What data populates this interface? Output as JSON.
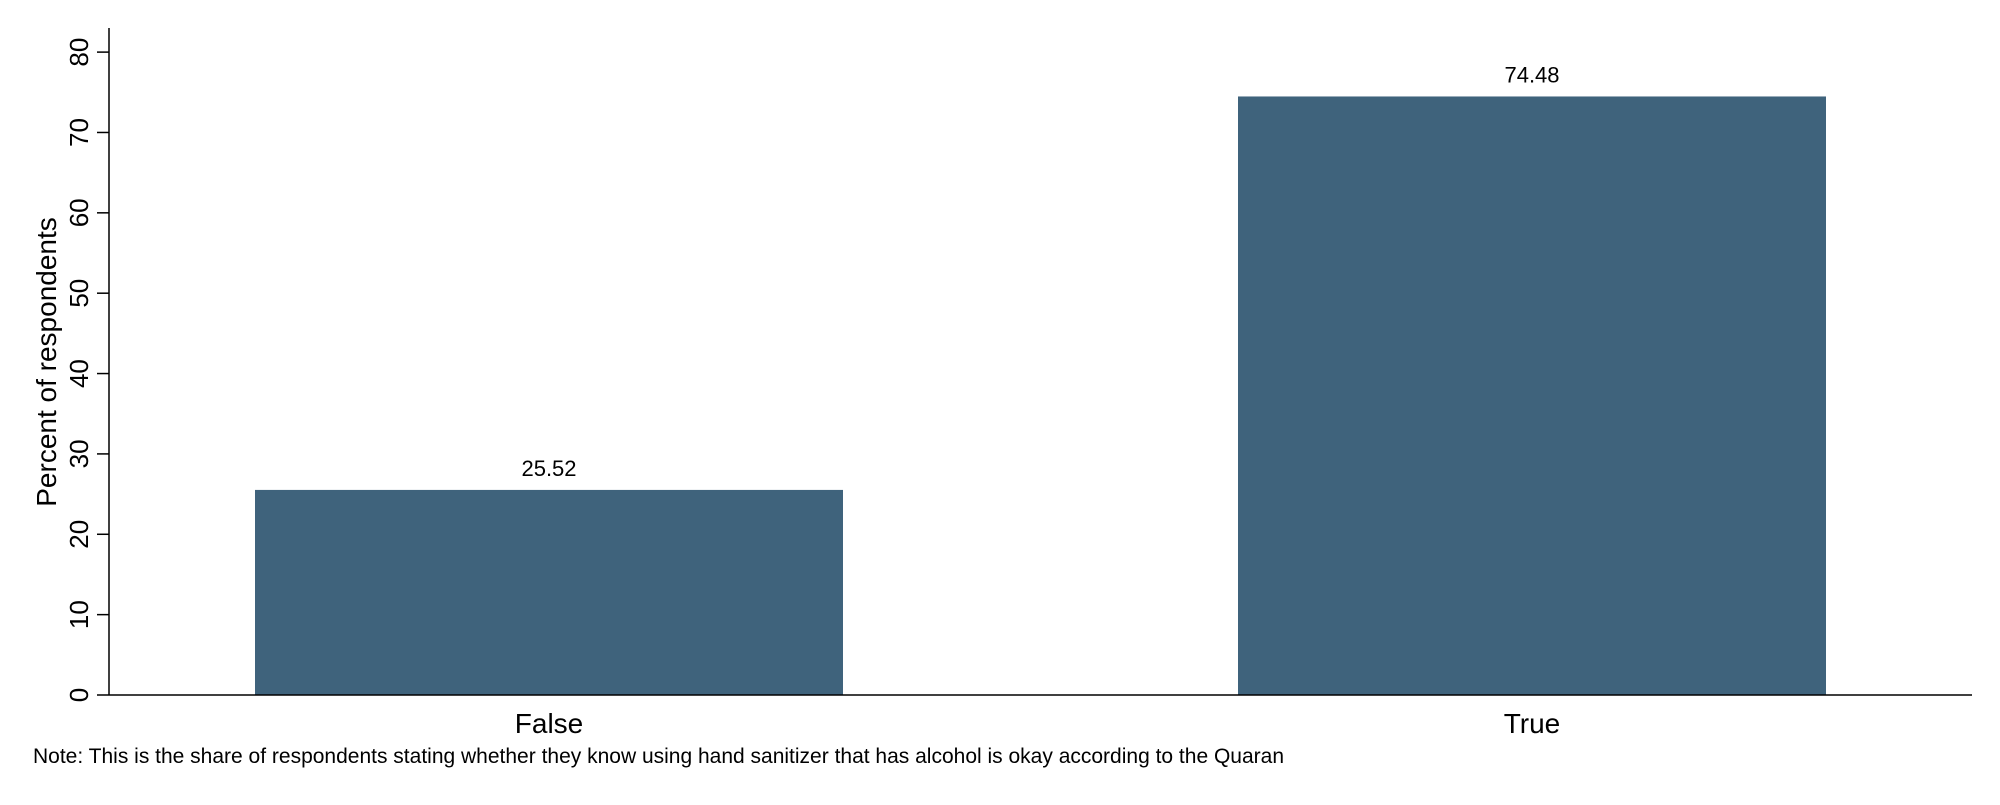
{
  "chart_data": {
    "type": "bar",
    "categories": [
      "False",
      "True"
    ],
    "values": [
      25.52,
      74.48
    ],
    "value_labels": [
      "25.52",
      "74.48"
    ],
    "ylabel": "Percent of respondents",
    "xlabel": "",
    "ylim": [
      0,
      83
    ],
    "yticks": [
      0,
      10,
      20,
      30,
      40,
      50,
      60,
      70,
      80
    ],
    "ytick_labels": [
      "0",
      "10",
      "20",
      "30",
      "40",
      "50",
      "60",
      "70",
      "80"
    ],
    "grid": false,
    "legend": "none",
    "bar_color": "#3f637c",
    "note": "Note: This is the share of respondents stating whether they know using hand sanitizer that has alcohol is okay according to the Quaran"
  }
}
